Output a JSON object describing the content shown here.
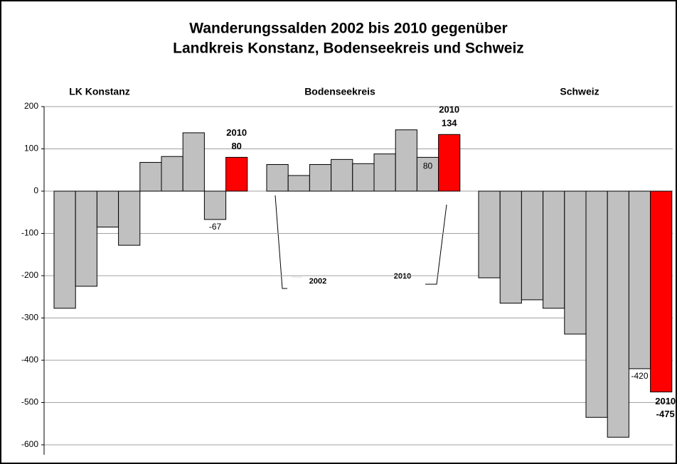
{
  "chart_data": {
    "type": "bar",
    "title": [
      "Wanderungssalden  2002 bis 2010  gegenüber",
      "Landkreis Konstanz,  Bodenseekreis und  Schweiz"
    ],
    "color": "#c0c0c0",
    "highlight_color": "#ff0000",
    "highlight_label": "2010",
    "groups": [
      {
        "name": "LK Konstanz",
        "values": [
          -277,
          -225,
          -85,
          -128,
          68,
          82,
          138,
          -67,
          80
        ],
        "value_labels": [
          null,
          null,
          null,
          null,
          null,
          null,
          null,
          "-67",
          "80"
        ]
      },
      {
        "name": "Bodenseekreis",
        "values": [
          63,
          37,
          63,
          75,
          65,
          88,
          145,
          80,
          134
        ],
        "value_labels": [
          null,
          null,
          null,
          null,
          null,
          null,
          null,
          "80",
          "134"
        ]
      },
      {
        "name": "Schweiz",
        "values": [
          -205,
          -265,
          -257,
          -277,
          -338,
          -535,
          -582,
          -420,
          -475
        ],
        "value_labels": [
          null,
          null,
          null,
          null,
          null,
          null,
          null,
          "-420",
          "-475"
        ]
      }
    ],
    "annotations": [
      "2002",
      "2010"
    ],
    "ylim": [
      -600,
      200
    ],
    "yticks": [
      200,
      100,
      0,
      -100,
      -200,
      -300,
      -400,
      -500,
      -600
    ],
    "grid": true
  }
}
